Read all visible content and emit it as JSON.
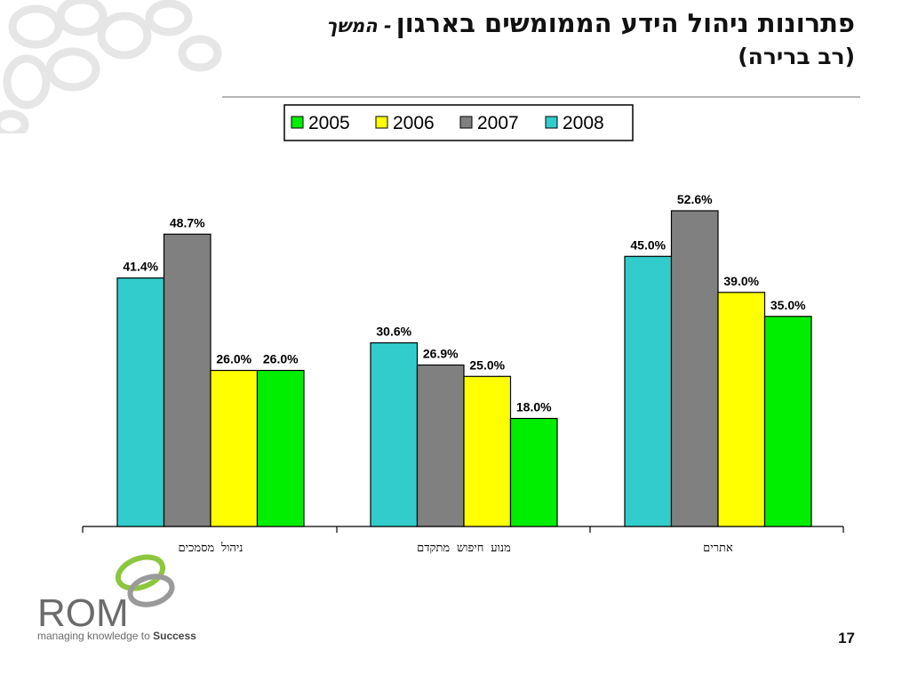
{
  "slide": {
    "title_main": "פתרונות ניהול הידע הממומשים בארגון",
    "title_continued": "- המשך",
    "title_sub": "(רב ברירה)",
    "page_number": "17"
  },
  "logo": {
    "wordmark": "ROM",
    "tagline_prefix": "managing knowledge to",
    "tagline_emphasis": "Success",
    "accent_color": "#8DC63F"
  },
  "chart_data": {
    "type": "bar",
    "categories": [
      "ניהול מסמכים",
      "מנוע חיפוש מתקדם",
      "אתרים"
    ],
    "series": [
      {
        "name": "2008",
        "color": "#33CCCC",
        "values": [
          41.4,
          30.6,
          45.0
        ],
        "labels": [
          "41.4%",
          "30.6%",
          "45.0%"
        ]
      },
      {
        "name": "2007",
        "color": "#808080",
        "values": [
          48.7,
          26.9,
          52.6
        ],
        "labels": [
          "48.7%",
          "26.9%",
          "52.6%"
        ]
      },
      {
        "name": "2006",
        "color": "#FFFF00",
        "values": [
          26.0,
          25.0,
          39.0
        ],
        "labels": [
          "26.0%",
          "25.0%",
          "39.0%"
        ]
      },
      {
        "name": "2005",
        "color": "#00EE00",
        "values": [
          26.0,
          18.0,
          35.0
        ],
        "labels": [
          "26.0%",
          "18.0%",
          "35.0%"
        ]
      }
    ],
    "legend_order": [
      "2005",
      "2006",
      "2007",
      "2008"
    ],
    "legend_position": "top-center",
    "ylim": [
      0,
      60
    ],
    "grid": false,
    "title": "",
    "xlabel": "",
    "ylabel": ""
  }
}
